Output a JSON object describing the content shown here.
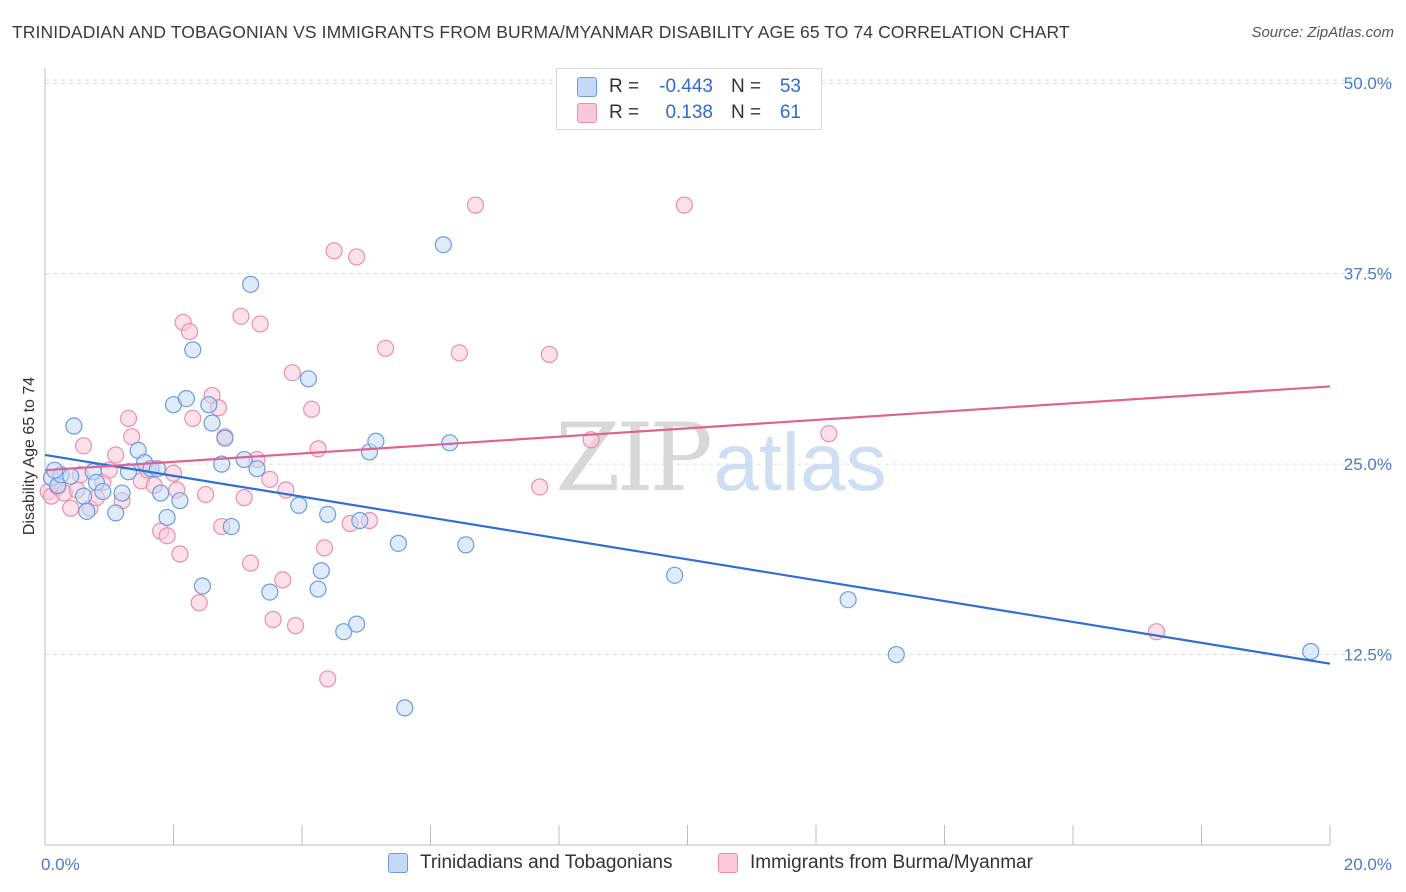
{
  "title": "TRINIDADIAN AND TOBAGONIAN VS IMMIGRANTS FROM BURMA/MYANMAR DISABILITY AGE 65 TO 74 CORRELATION CHART",
  "source": "Source: ZipAtlas.com",
  "watermark": {
    "zip": "ZIP",
    "atlas": "atlas"
  },
  "legend": {
    "rows": [
      {
        "r_label": "R =",
        "r_value": "-0.443",
        "n_label": "N =",
        "n_value": "53"
      },
      {
        "r_label": "R =",
        "r_value": "0.138",
        "n_label": "N =",
        "n_value": "61"
      }
    ]
  },
  "colors": {
    "series1_fill": "#c5d8f5",
    "series1_stroke": "#6b9de0",
    "series1_line": "#2f6fd3",
    "series2_fill": "#f9c9d8",
    "series2_stroke": "#e890ad",
    "series2_line": "#e0628f",
    "tick_label": "#4a7cc9",
    "grid": "#dcdcdc"
  },
  "chart_data": {
    "type": "scatter",
    "ylabel": "Disability Age 65 to 74",
    "xlim": [
      0,
      20
    ],
    "ylim": [
      0,
      51
    ],
    "y_ticks": [
      12.5,
      25.0,
      37.5,
      50.0
    ],
    "y_tick_labels": [
      "12.5%",
      "25.0%",
      "37.5%",
      "50.0%"
    ],
    "x_tick_labels": [
      "0.0%",
      "20.0%"
    ],
    "grid": true,
    "legend_position": "top-center",
    "series": [
      {
        "name": "Trinidadians and Tobagonians",
        "trend": [
          [
            0,
            25.6
          ],
          [
            20,
            11.9
          ]
        ],
        "points": [
          [
            0.1,
            24.1
          ],
          [
            0.2,
            23.6
          ],
          [
            0.25,
            24.3
          ],
          [
            0.4,
            24.2
          ],
          [
            0.45,
            27.5
          ],
          [
            0.6,
            22.9
          ],
          [
            0.65,
            21.9
          ],
          [
            0.75,
            24.5
          ],
          [
            0.8,
            23.8
          ],
          [
            0.9,
            23.2
          ],
          [
            1.1,
            21.8
          ],
          [
            1.2,
            23.1
          ],
          [
            1.3,
            24.5
          ],
          [
            1.45,
            25.9
          ],
          [
            1.55,
            25.1
          ],
          [
            1.65,
            24.7
          ],
          [
            1.75,
            24.7
          ],
          [
            1.8,
            23.1
          ],
          [
            1.9,
            21.5
          ],
          [
            2.0,
            28.9
          ],
          [
            2.1,
            22.6
          ],
          [
            2.2,
            29.3
          ],
          [
            2.3,
            32.5
          ],
          [
            2.45,
            17.0
          ],
          [
            2.55,
            28.9
          ],
          [
            2.6,
            27.7
          ],
          [
            2.75,
            25.0
          ],
          [
            2.8,
            26.7
          ],
          [
            2.9,
            20.9
          ],
          [
            3.1,
            25.3
          ],
          [
            3.2,
            36.8
          ],
          [
            3.3,
            24.7
          ],
          [
            3.5,
            16.6
          ],
          [
            3.95,
            22.3
          ],
          [
            4.1,
            30.6
          ],
          [
            4.25,
            16.8
          ],
          [
            4.3,
            18.0
          ],
          [
            4.4,
            21.7
          ],
          [
            4.65,
            14.0
          ],
          [
            4.85,
            14.5
          ],
          [
            4.9,
            21.3
          ],
          [
            5.05,
            25.8
          ],
          [
            5.15,
            26.5
          ],
          [
            5.5,
            19.8
          ],
          [
            5.6,
            9.0
          ],
          [
            6.2,
            39.4
          ],
          [
            6.3,
            26.4
          ],
          [
            6.55,
            19.7
          ],
          [
            9.8,
            17.7
          ],
          [
            12.5,
            16.1
          ],
          [
            13.25,
            12.5
          ],
          [
            19.7,
            12.7
          ],
          [
            0.15,
            24.6
          ]
        ]
      },
      {
        "name": "Immigrants from Burma/Myanmar",
        "trend": [
          [
            0,
            24.6
          ],
          [
            20,
            30.1
          ]
        ],
        "points": [
          [
            0.05,
            23.2
          ],
          [
            0.1,
            22.9
          ],
          [
            0.2,
            23.5
          ],
          [
            0.3,
            23.1
          ],
          [
            0.4,
            22.1
          ],
          [
            0.5,
            23.3
          ],
          [
            0.55,
            24.3
          ],
          [
            0.6,
            26.2
          ],
          [
            0.7,
            22.1
          ],
          [
            0.8,
            22.8
          ],
          [
            0.9,
            23.8
          ],
          [
            1.0,
            24.6
          ],
          [
            1.1,
            25.6
          ],
          [
            1.2,
            22.6
          ],
          [
            1.3,
            28.0
          ],
          [
            1.35,
            26.8
          ],
          [
            1.5,
            23.9
          ],
          [
            1.6,
            24.6
          ],
          [
            1.7,
            23.6
          ],
          [
            1.8,
            20.6
          ],
          [
            1.9,
            20.3
          ],
          [
            2.0,
            24.4
          ],
          [
            2.05,
            23.3
          ],
          [
            2.1,
            19.1
          ],
          [
            2.15,
            34.3
          ],
          [
            2.25,
            33.7
          ],
          [
            2.3,
            28.0
          ],
          [
            2.4,
            15.9
          ],
          [
            2.5,
            23.0
          ],
          [
            2.6,
            29.5
          ],
          [
            2.7,
            28.7
          ],
          [
            2.75,
            20.9
          ],
          [
            2.8,
            26.8
          ],
          [
            3.05,
            34.7
          ],
          [
            3.1,
            22.8
          ],
          [
            3.2,
            18.5
          ],
          [
            3.3,
            25.3
          ],
          [
            3.35,
            34.2
          ],
          [
            3.5,
            24.0
          ],
          [
            3.55,
            14.8
          ],
          [
            3.7,
            17.4
          ],
          [
            3.75,
            23.3
          ],
          [
            3.85,
            31.0
          ],
          [
            3.9,
            14.4
          ],
          [
            4.15,
            28.6
          ],
          [
            4.25,
            26.0
          ],
          [
            4.35,
            19.5
          ],
          [
            4.4,
            10.9
          ],
          [
            4.5,
            39.0
          ],
          [
            4.75,
            21.1
          ],
          [
            4.85,
            38.6
          ],
          [
            5.05,
            21.3
          ],
          [
            5.3,
            32.6
          ],
          [
            6.45,
            32.3
          ],
          [
            6.7,
            42.0
          ],
          [
            7.7,
            23.5
          ],
          [
            7.85,
            32.2
          ],
          [
            8.5,
            26.6
          ],
          [
            9.95,
            42.0
          ],
          [
            12.2,
            27.0
          ],
          [
            17.3,
            14.0
          ]
        ]
      }
    ]
  },
  "bottom_legend": [
    "Trinidadians and Tobagonians",
    "Immigrants from Burma/Myanmar"
  ]
}
